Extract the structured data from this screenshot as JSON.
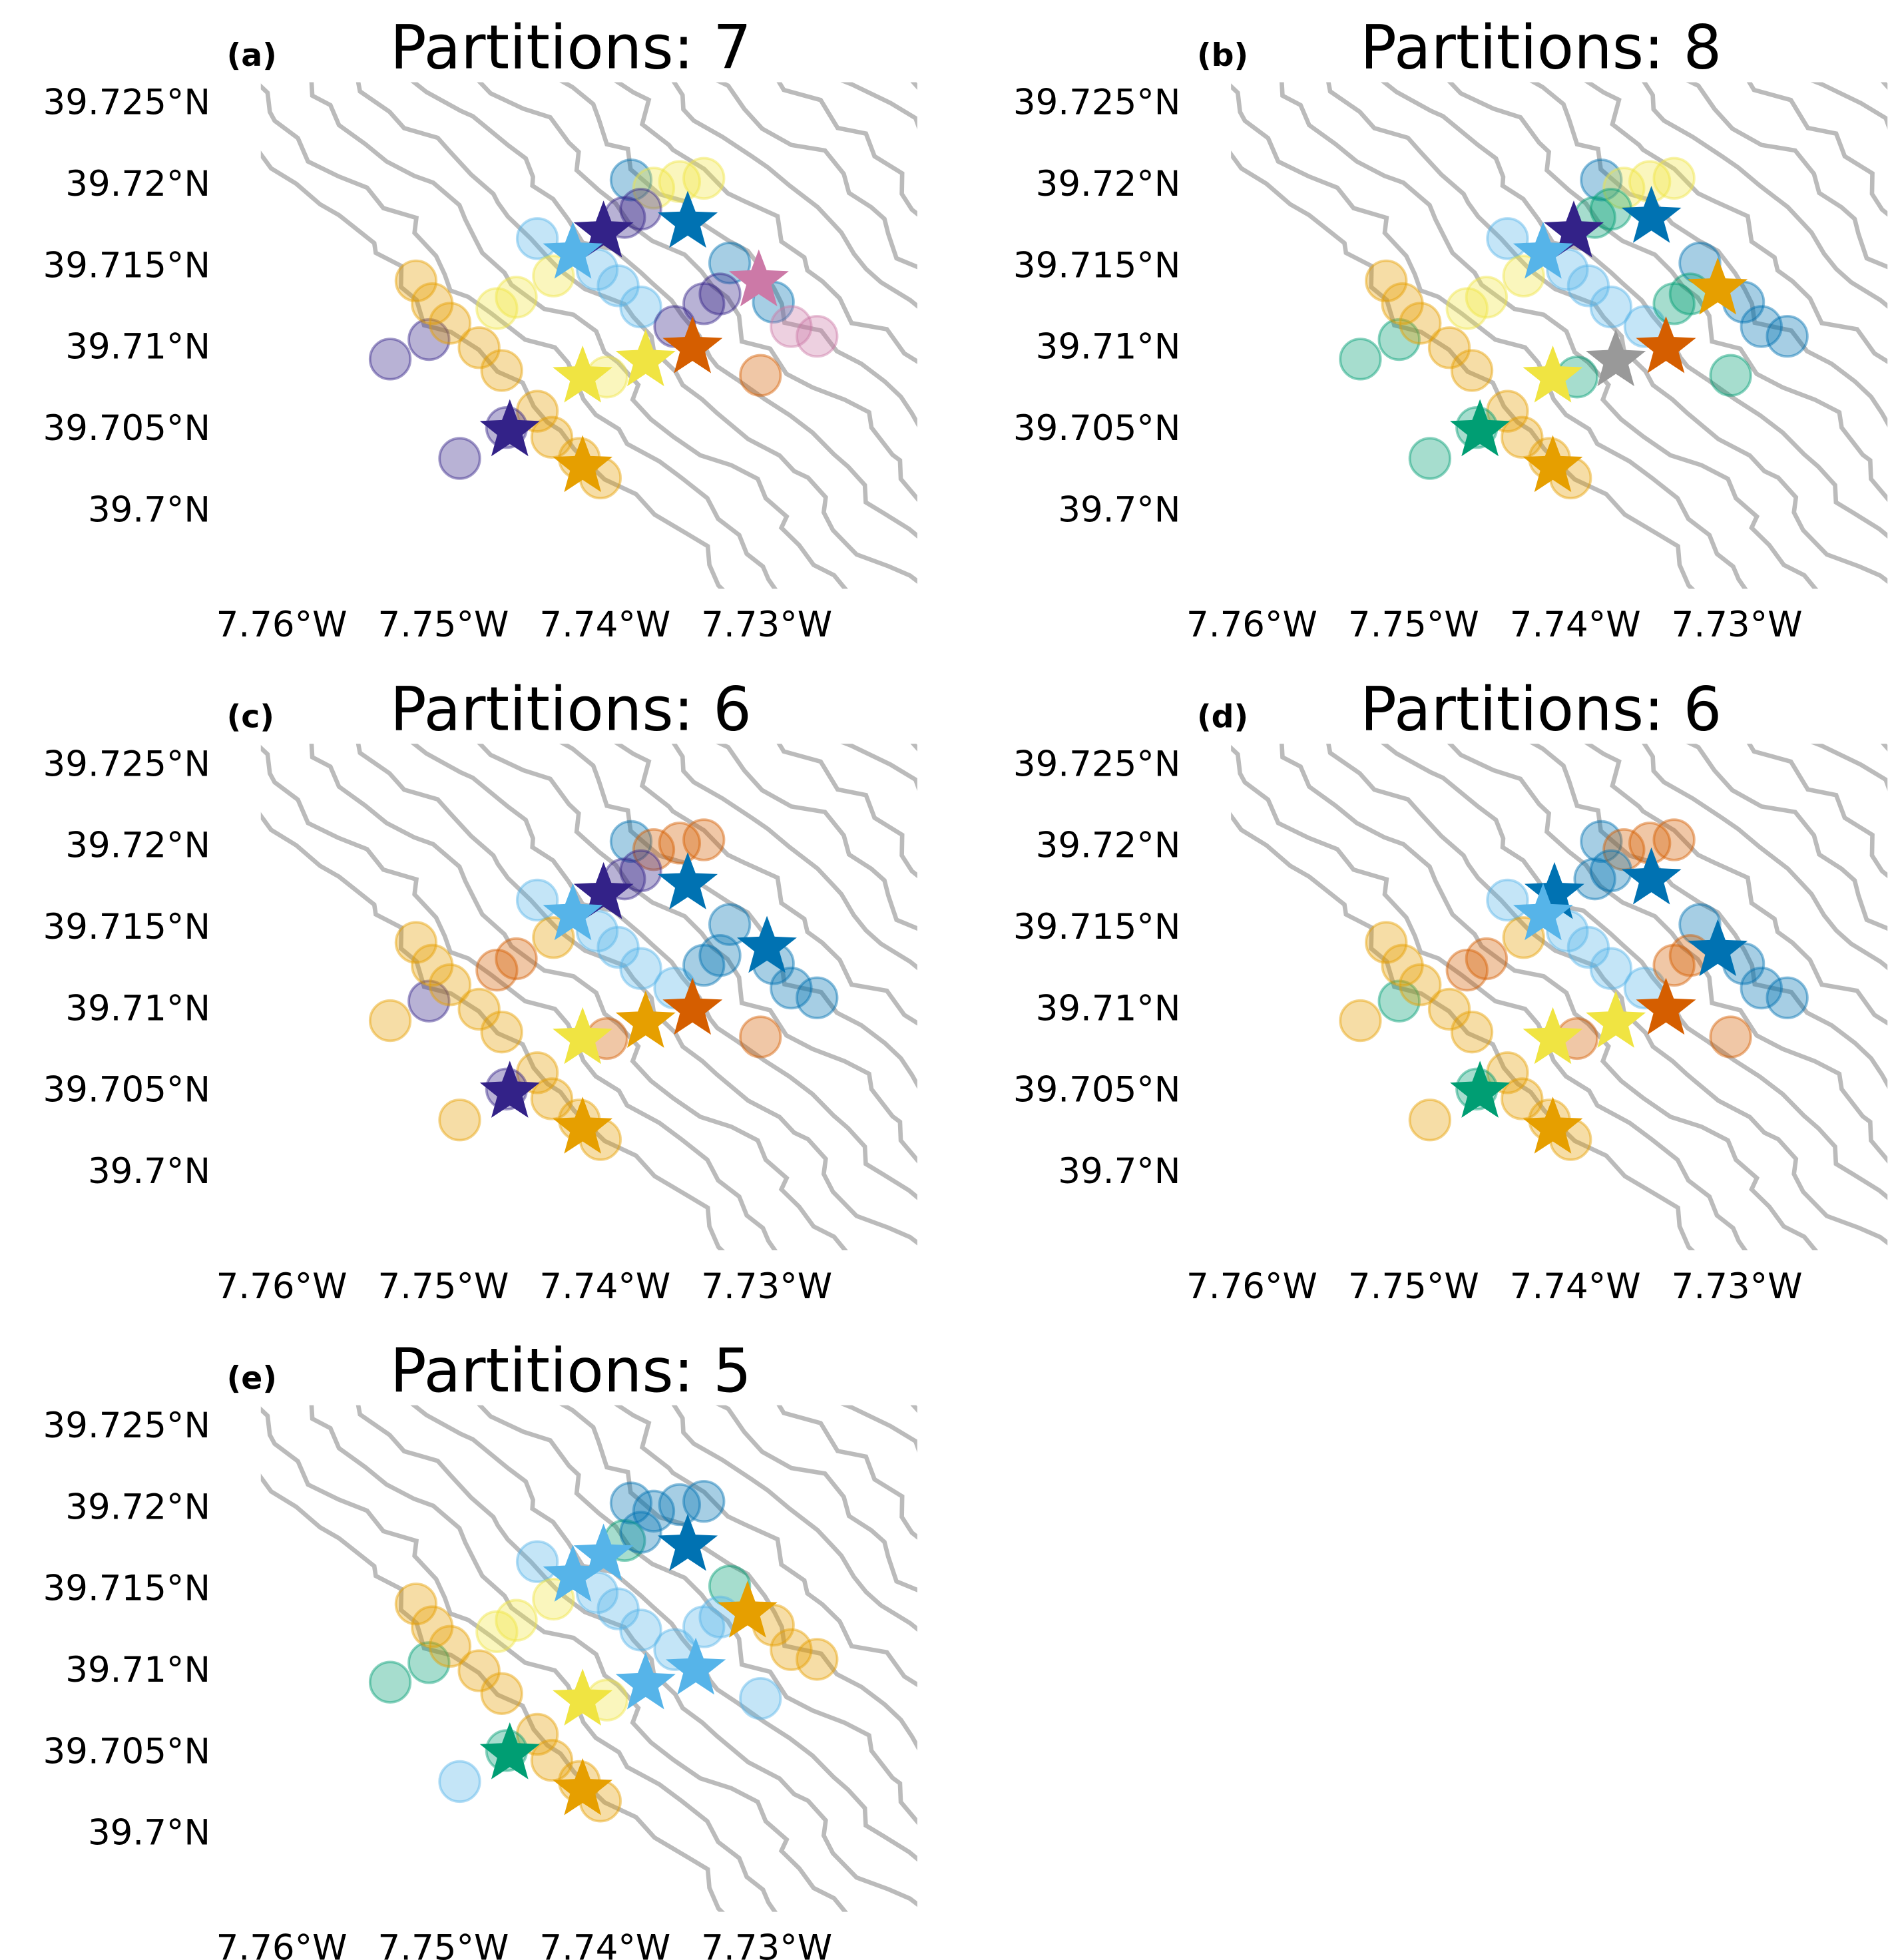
{
  "chart_data": [
    {
      "panel_label": "(a)",
      "title": "Partitions: 7",
      "type": "scatter",
      "site_groups": [
        "blue",
        "blue",
        "blue",
        "lightblue",
        "lightblue",
        "lightblue",
        "lightblue",
        "yellow",
        "yellow",
        "yellow",
        "yellow",
        "yellow",
        "yellow",
        "yellow",
        "purple",
        "purple",
        "purple",
        "purple",
        "purple",
        "purple",
        "purple",
        "purple",
        "gold",
        "gold",
        "gold",
        "gold",
        "gold",
        "gold",
        "gold",
        "gold",
        "vermillion",
        "pink",
        "pink",
        "purple",
        "gold"
      ],
      "centroids": [
        {
          "group": "purple",
          "lon": -7.7397,
          "lat": 39.717
        },
        {
          "group": "lightblue",
          "lon": -7.7416,
          "lat": 39.7157
        },
        {
          "group": "blue",
          "lon": -7.7345,
          "lat": 39.7176
        },
        {
          "group": "pink",
          "lon": -7.7301,
          "lat": 39.714
        },
        {
          "group": "yellow",
          "lon": -7.7371,
          "lat": 39.7091
        },
        {
          "group": "yellow",
          "lon": -7.741,
          "lat": 39.7081
        },
        {
          "group": "vermillion",
          "lon": -7.7342,
          "lat": 39.7099
        },
        {
          "group": "purple",
          "lon": -7.7455,
          "lat": 39.7048
        },
        {
          "group": "gold",
          "lon": -7.741,
          "lat": 39.7026
        }
      ]
    },
    {
      "panel_label": "(b)",
      "title": "Partitions: 8",
      "type": "scatter",
      "site_groups": [
        "blue",
        "blue",
        "blue",
        "lightblue",
        "lightblue",
        "lightblue",
        "lightblue",
        "yellow",
        "yellow",
        "yellow",
        "yellow",
        "yellow",
        "yellow",
        "green",
        "green",
        "green",
        "lightblue",
        "green",
        "green",
        "green",
        "green",
        "green",
        "gold",
        "gold",
        "gold",
        "gold",
        "gold",
        "gold",
        "gold",
        "gold",
        "green",
        "blue",
        "blue",
        "green",
        "gold"
      ],
      "centroids": [
        {
          "group": "purple",
          "lon": -7.7397,
          "lat": 39.717
        },
        {
          "group": "lightblue",
          "lon": -7.7416,
          "lat": 39.7157
        },
        {
          "group": "blue",
          "lon": -7.7349,
          "lat": 39.7179
        },
        {
          "group": "gold",
          "lon": -7.7308,
          "lat": 39.7135
        },
        {
          "group": "grey",
          "lon": -7.7371,
          "lat": 39.7091
        },
        {
          "group": "vermillion",
          "lon": -7.734,
          "lat": 39.7099
        },
        {
          "group": "yellow",
          "lon": -7.741,
          "lat": 39.7081
        },
        {
          "group": "green",
          "lon": -7.7455,
          "lat": 39.7048
        },
        {
          "group": "gold",
          "lon": -7.741,
          "lat": 39.7026
        }
      ]
    },
    {
      "panel_label": "(c)",
      "title": "Partitions: 6",
      "type": "scatter",
      "site_groups": [
        "blue",
        "blue",
        "blue",
        "lightblue",
        "lightblue",
        "lightblue",
        "lightblue",
        "vermillion",
        "vermillion",
        "vermillion",
        "vermillion",
        "vermillion",
        "gold",
        "vermillion",
        "purple",
        "purple",
        "lightblue",
        "blue",
        "blue",
        "gold",
        "purple",
        "gold",
        "gold",
        "gold",
        "gold",
        "gold",
        "gold",
        "gold",
        "gold",
        "gold",
        "vermillion",
        "blue",
        "blue",
        "purple",
        "gold"
      ],
      "centroids": [
        {
          "group": "purple",
          "lon": -7.7397,
          "lat": 39.717
        },
        {
          "group": "lightblue",
          "lon": -7.7416,
          "lat": 39.7157
        },
        {
          "group": "blue",
          "lon": -7.7345,
          "lat": 39.7176
        },
        {
          "group": "blue",
          "lon": -7.7296,
          "lat": 39.7137
        },
        {
          "group": "gold",
          "lon": -7.7371,
          "lat": 39.7091
        },
        {
          "group": "vermillion",
          "lon": -7.7342,
          "lat": 39.7099
        },
        {
          "group": "yellow",
          "lon": -7.741,
          "lat": 39.7081
        },
        {
          "group": "purple",
          "lon": -7.7455,
          "lat": 39.7048
        },
        {
          "group": "gold",
          "lon": -7.741,
          "lat": 39.7026
        }
      ]
    },
    {
      "panel_label": "(d)",
      "title": "Partitions: 6",
      "type": "scatter",
      "site_groups": [
        "blue",
        "blue",
        "blue",
        "lightblue",
        "lightblue",
        "lightblue",
        "lightblue",
        "vermillion",
        "vermillion",
        "vermillion",
        "vermillion",
        "vermillion",
        "gold",
        "vermillion",
        "blue",
        "blue",
        "lightblue",
        "vermillion",
        "vermillion",
        "gold",
        "green",
        "gold",
        "gold",
        "gold",
        "gold",
        "gold",
        "gold",
        "gold",
        "gold",
        "gold",
        "vermillion",
        "blue",
        "blue",
        "green",
        "gold"
      ],
      "centroids": [
        {
          "group": "blue",
          "lon": -7.7409,
          "lat": 39.717
        },
        {
          "group": "lightblue",
          "lon": -7.7416,
          "lat": 39.7157
        },
        {
          "group": "blue",
          "lon": -7.7349,
          "lat": 39.7179
        },
        {
          "group": "blue",
          "lon": -7.7308,
          "lat": 39.7135
        },
        {
          "group": "yellow",
          "lon": -7.7371,
          "lat": 39.7091
        },
        {
          "group": "vermillion",
          "lon": -7.734,
          "lat": 39.7099
        },
        {
          "group": "yellow",
          "lon": -7.741,
          "lat": 39.7081
        },
        {
          "group": "green",
          "lon": -7.7455,
          "lat": 39.7048
        },
        {
          "group": "gold",
          "lon": -7.741,
          "lat": 39.7026
        }
      ]
    },
    {
      "panel_label": "(e)",
      "title": "Partitions: 5",
      "type": "scatter",
      "site_groups": [
        "blue",
        "green",
        "gold",
        "lightblue",
        "lightblue",
        "lightblue",
        "lightblue",
        "blue",
        "blue",
        "blue",
        "yellow",
        "yellow",
        "yellow",
        "yellow",
        "green",
        "blue",
        "lightblue",
        "lightblue",
        "lightblue",
        "green",
        "green",
        "lightblue",
        "gold",
        "gold",
        "gold",
        "gold",
        "gold",
        "gold",
        "gold",
        "gold",
        "lightblue",
        "gold",
        "gold",
        "green",
        "gold"
      ],
      "centroids": [
        {
          "group": "lightblue",
          "lon": -7.7416,
          "lat": 39.7157
        },
        {
          "group": "lightblue",
          "lon": -7.7397,
          "lat": 39.717
        },
        {
          "group": "blue",
          "lon": -7.7345,
          "lat": 39.7176
        },
        {
          "group": "gold",
          "lon": -7.7308,
          "lat": 39.7135
        },
        {
          "group": "lightblue",
          "lon": -7.7371,
          "lat": 39.7091
        },
        {
          "group": "lightblue",
          "lon": -7.734,
          "lat": 39.71
        },
        {
          "group": "yellow",
          "lon": -7.741,
          "lat": 39.7081
        },
        {
          "group": "green",
          "lon": -7.7455,
          "lat": 39.7048
        },
        {
          "group": "gold",
          "lon": -7.741,
          "lat": 39.7026
        }
      ]
    }
  ],
  "sites": [
    [
      -7.738,
      39.7202
    ],
    [
      -7.7319,
      39.7151
    ],
    [
      -7.7292,
      39.7127
    ],
    [
      -7.7438,
      39.7166
    ],
    [
      -7.7401,
      39.7147
    ],
    [
      -7.7388,
      39.7137
    ],
    [
      -7.7374,
      39.7124
    ],
    [
      -7.7366,
      39.7197
    ],
    [
      -7.735,
      39.7201
    ],
    [
      -7.7335,
      39.7203
    ],
    [
      -7.7451,
      39.713
    ],
    [
      -7.7463,
      39.7123
    ],
    [
      -7.7428,
      39.7143
    ],
    [
      -7.7395,
      39.7081
    ],
    [
      -7.7384,
      39.7179
    ],
    [
      -7.7374,
      39.7184
    ],
    [
      -7.7353,
      39.7112
    ],
    [
      -7.7335,
      39.7126
    ],
    [
      -7.7325,
      39.7132
    ],
    [
      -7.7529,
      39.7092
    ],
    [
      -7.7505,
      39.7104
    ],
    [
      -7.7486,
      39.7031
    ],
    [
      -7.7513,
      39.714
    ],
    [
      -7.7503,
      39.7126
    ],
    [
      -7.7492,
      39.7114
    ],
    [
      -7.7474,
      39.7099
    ],
    [
      -7.746,
      39.7085
    ],
    [
      -7.7438,
      39.706
    ],
    [
      -7.7429,
      39.7044
    ],
    [
      -7.7399,
      39.7019
    ],
    [
      -7.73,
      39.7082
    ],
    [
      -7.7281,
      39.7112
    ],
    [
      -7.7265,
      39.7106
    ],
    [
      -7.7457,
      39.705
    ],
    [
      -7.7412,
      39.7031
    ]
  ],
  "axes": {
    "x_ticks": [
      {
        "value": -7.76,
        "label": "7.76°W"
      },
      {
        "value": -7.75,
        "label": "7.75°W"
      },
      {
        "value": -7.74,
        "label": "7.74°W"
      },
      {
        "value": -7.73,
        "label": "7.73°W"
      }
    ],
    "y_ticks": [
      {
        "value": 39.725,
        "label": "39.725°N"
      },
      {
        "value": 39.72,
        "label": "39.72°N"
      },
      {
        "value": 39.715,
        "label": "39.715°N"
      },
      {
        "value": 39.71,
        "label": "39.71°N"
      },
      {
        "value": 39.705,
        "label": "39.705°N"
      },
      {
        "value": 39.7,
        "label": "39.7°N"
      }
    ],
    "xlim": [
      -7.7609,
      -7.7203
    ],
    "ylim": [
      39.6951,
      39.7262
    ],
    "grid": false,
    "contour_color": "#bbbbbb"
  },
  "colors": {
    "purple": "#332288",
    "lightblue": "#56B4E9",
    "blue": "#0072B2",
    "pink": "#CC79A7",
    "yellow": "#F0E442",
    "vermillion": "#D55E00",
    "gold": "#E69F00",
    "green": "#009E73",
    "grey": "#999999"
  }
}
